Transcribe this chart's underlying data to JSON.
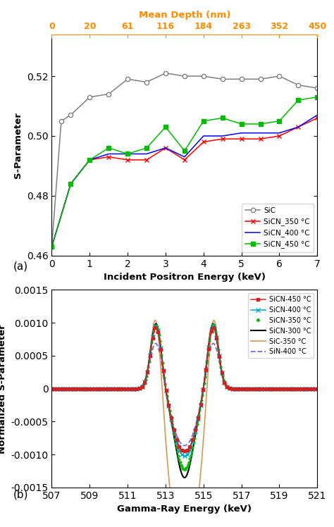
{
  "top": {
    "title_top": "Mean Depth (nm)",
    "top_tick_labels": [
      "0",
      "20",
      "61",
      "116",
      "184",
      "263",
      "352",
      "450"
    ],
    "top_tick_positions": [
      0,
      0.5,
      1.0,
      1.5,
      2.0,
      2.5,
      3.0,
      3.5
    ],
    "xlabel": "Incident Positron Energy (keV)",
    "ylabel": "S-Parameter",
    "xlim": [
      0,
      7
    ],
    "ylim": [
      0.46,
      0.534
    ],
    "yticks": [
      0.46,
      0.48,
      0.5,
      0.52
    ],
    "label_a": "(a)",
    "SiC": {
      "x": [
        0,
        0.25,
        0.5,
        1.0,
        1.5,
        2.0,
        2.5,
        3.0,
        3.5,
        4.0,
        4.5,
        5.0,
        5.5,
        6.0,
        6.5,
        7.0
      ],
      "y": [
        0.463,
        0.505,
        0.507,
        0.513,
        0.514,
        0.519,
        0.518,
        0.521,
        0.52,
        0.52,
        0.519,
        0.519,
        0.519,
        0.52,
        0.517,
        0.516
      ],
      "color": "#808080",
      "marker": "o",
      "mfc": "white",
      "label": "SiC"
    },
    "SiCN_350": {
      "x": [
        0,
        0.5,
        1.0,
        1.5,
        2.0,
        2.5,
        3.0,
        3.5,
        4.0,
        4.5,
        5.0,
        5.5,
        6.0,
        6.5,
        7.0
      ],
      "y": [
        0.463,
        0.484,
        0.492,
        0.493,
        0.492,
        0.492,
        0.496,
        0.492,
        0.498,
        0.499,
        0.499,
        0.499,
        0.5,
        0.503,
        0.506
      ],
      "color": "#FF0000",
      "marker": "x",
      "mfc": "white",
      "label": "SiCN_350 °C"
    },
    "SiCN_400": {
      "x": [
        0,
        0.5,
        1.0,
        1.5,
        2.0,
        2.5,
        3.0,
        3.5,
        4.0,
        4.5,
        5.0,
        5.5,
        6.0,
        6.5,
        7.0
      ],
      "y": [
        0.463,
        0.484,
        0.492,
        0.494,
        0.494,
        0.494,
        0.496,
        0.493,
        0.5,
        0.5,
        0.501,
        0.501,
        0.501,
        0.503,
        0.507
      ],
      "color": "#0000FF",
      "label": "SiCN_400 °C"
    },
    "SiCN_450": {
      "x": [
        0,
        0.5,
        1.0,
        1.5,
        2.0,
        2.5,
        3.0,
        3.5,
        4.0,
        4.5,
        5.0,
        5.5,
        6.0,
        6.5,
        7.0
      ],
      "y": [
        0.463,
        0.484,
        0.492,
        0.496,
        0.494,
        0.496,
        0.503,
        0.495,
        0.505,
        0.506,
        0.504,
        0.504,
        0.505,
        0.512,
        0.513
      ],
      "color": "#00BB00",
      "marker": "s",
      "label": "SiCN_450 °C"
    }
  },
  "bottom": {
    "xlabel": "Gamma-Ray Energy (keV)",
    "ylabel": "Normalized S-Parameter",
    "xlim": [
      507,
      521
    ],
    "ylim": [
      -0.0015,
      0.0015
    ],
    "xticks": [
      507,
      509,
      511,
      513,
      515,
      517,
      519,
      521
    ],
    "yticks": [
      -0.0015,
      -0.001,
      -0.0005,
      0,
      0.0005,
      0.001,
      0.0015
    ],
    "label_b": "(b)"
  }
}
